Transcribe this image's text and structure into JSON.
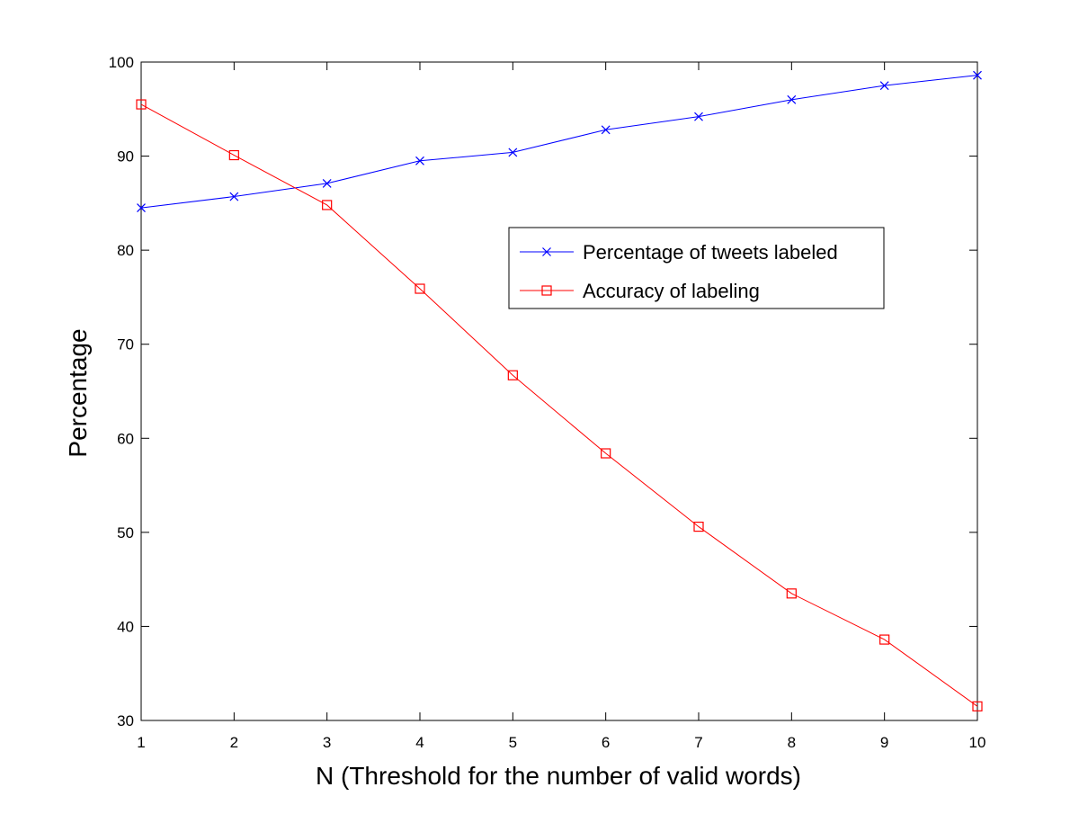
{
  "chart_data": {
    "type": "line",
    "title": "",
    "xlabel": "N (Threshold for the number of valid words)",
    "ylabel": "Percentage",
    "x": [
      1,
      2,
      3,
      4,
      5,
      6,
      7,
      8,
      9,
      10
    ],
    "xlim": [
      1,
      10
    ],
    "ylim": [
      30,
      100
    ],
    "xticks": [
      1,
      2,
      3,
      4,
      5,
      6,
      7,
      8,
      9,
      10
    ],
    "yticks": [
      30,
      40,
      50,
      60,
      70,
      80,
      90,
      100
    ],
    "grid": false,
    "legend_position": "inside, upper right of center",
    "series": [
      {
        "name": "Percentage of tweets labeled",
        "marker": "x",
        "color": "#0000ff",
        "values": [
          84.5,
          85.7,
          87.1,
          89.5,
          90.4,
          92.8,
          94.2,
          96.0,
          97.5,
          98.6
        ]
      },
      {
        "name": "Accuracy of labeling",
        "marker": "square",
        "color": "#ff0000",
        "values": [
          95.5,
          90.1,
          84.8,
          75.9,
          66.7,
          58.4,
          50.6,
          43.5,
          38.6,
          31.5
        ]
      }
    ]
  }
}
